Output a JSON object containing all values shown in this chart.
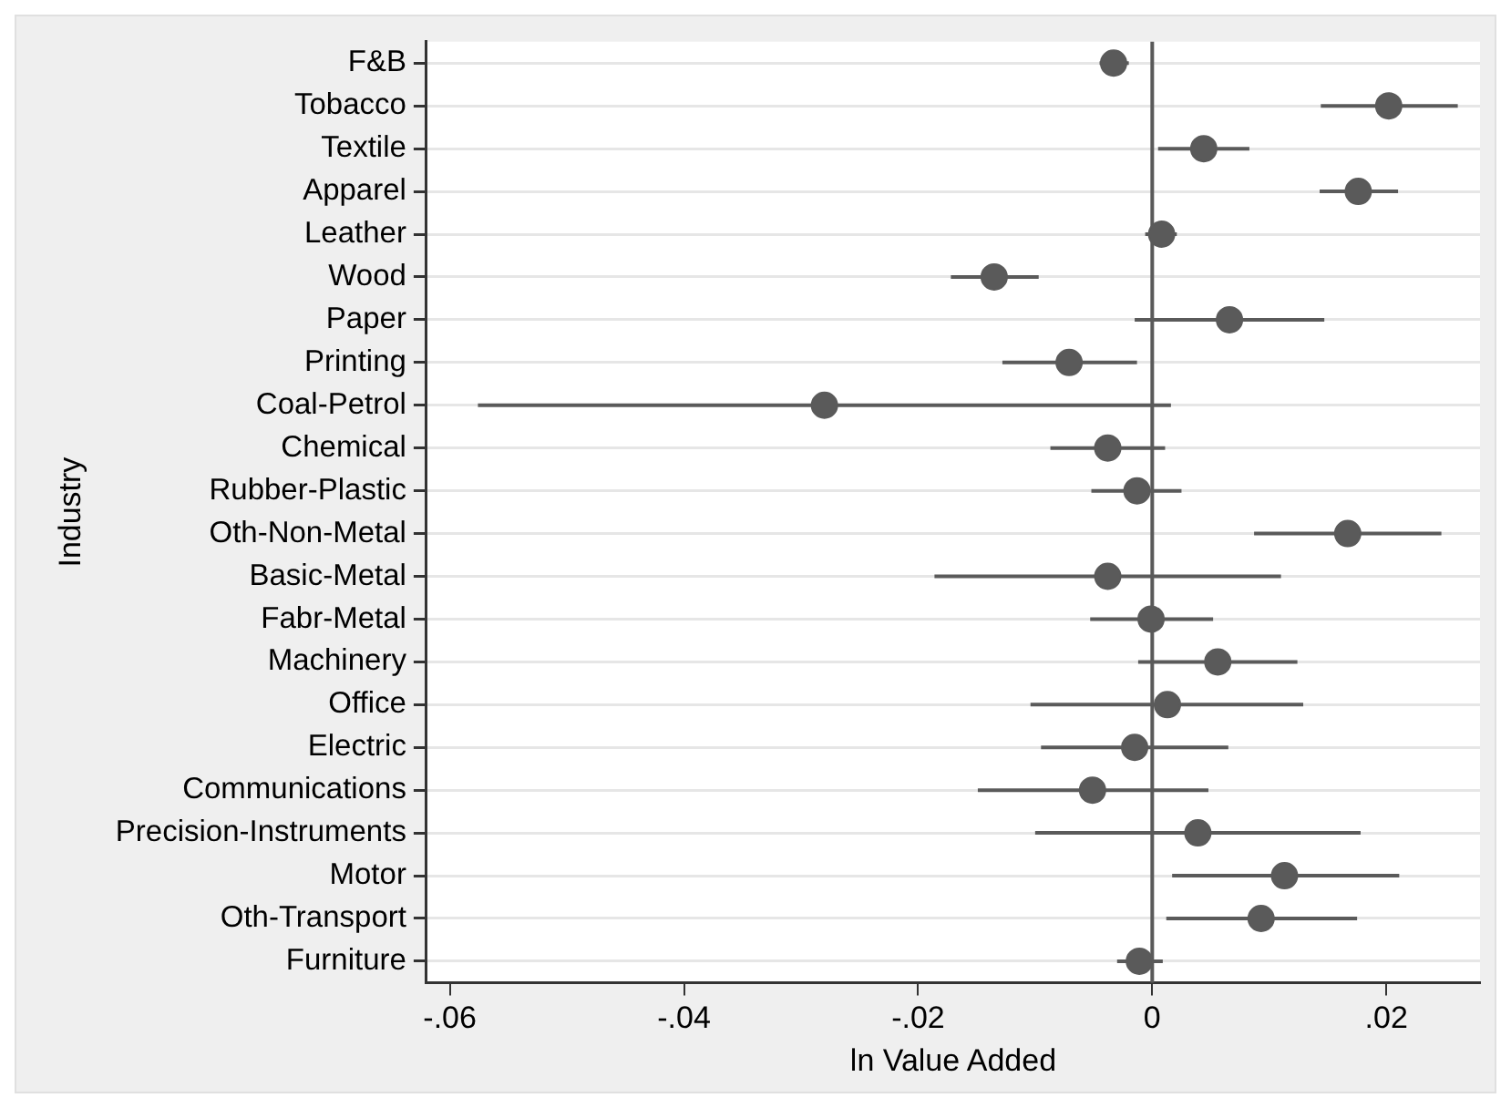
{
  "chart_data": {
    "type": "scatter",
    "orientation": "horizontal",
    "xlabel": "ln Value Added",
    "ylabel": "Industry",
    "categories": [
      "F&B",
      "Tobacco",
      "Textile",
      "Apparel",
      "Leather",
      "Wood",
      "Paper",
      "Printing",
      "Coal-Petrol",
      "Chemical",
      "Rubber-Plastic",
      "Oth-Non-Metal",
      "Basic-Metal",
      "Fabr-Metal",
      "Machinery",
      "Office",
      "Electric",
      "Communications",
      "Precision-Instruments",
      "Motor",
      "Oth-Transport",
      "Furniture"
    ],
    "values": [
      -0.0033,
      0.0202,
      0.0044,
      0.0176,
      0.0008,
      -0.0135,
      0.0066,
      -0.0071,
      -0.028,
      -0.0038,
      -0.0013,
      0.0167,
      -0.0038,
      -0.0001,
      0.0056,
      0.0013,
      -0.0015,
      -0.0051,
      0.0039,
      0.0113,
      0.0093,
      -0.0011
    ],
    "errors": [
      [
        -0.0045,
        -0.002
      ],
      [
        0.0144,
        0.0261
      ],
      [
        0.0005,
        0.0083
      ],
      [
        0.0143,
        0.021
      ],
      [
        -0.0006,
        0.0021
      ],
      [
        -0.0172,
        -0.0097
      ],
      [
        -0.0015,
        0.0147
      ],
      [
        -0.0128,
        -0.0013
      ],
      [
        -0.0576,
        0.0016
      ],
      [
        -0.0087,
        0.0011
      ],
      [
        -0.0052,
        0.0025
      ],
      [
        0.0087,
        0.0247
      ],
      [
        -0.0186,
        0.011
      ],
      [
        -0.0053,
        0.0052
      ],
      [
        -0.0012,
        0.0124
      ],
      [
        -0.0104,
        0.0129
      ],
      [
        -0.0095,
        0.0065
      ],
      [
        -0.0149,
        0.0048
      ],
      [
        -0.01,
        0.0178
      ],
      [
        0.0017,
        0.0211
      ],
      [
        0.0012,
        0.0175
      ],
      [
        -0.003,
        0.0009
      ]
    ],
    "color": "#5a5a5a",
    "marker": "circle",
    "grid": "y",
    "xlim": [
      -0.062,
      0.028
    ],
    "xticks": [
      {
        "value": -0.06,
        "label": "-.06"
      },
      {
        "value": -0.04,
        "label": "-.04"
      },
      {
        "value": -0.02,
        "label": "-.02"
      },
      0,
      {
        "value": 0.02,
        "label": ".02"
      }
    ],
    "ref_lines": [
      {
        "axis": "x",
        "value": 0,
        "color": "#5a5a5a"
      }
    ]
  }
}
